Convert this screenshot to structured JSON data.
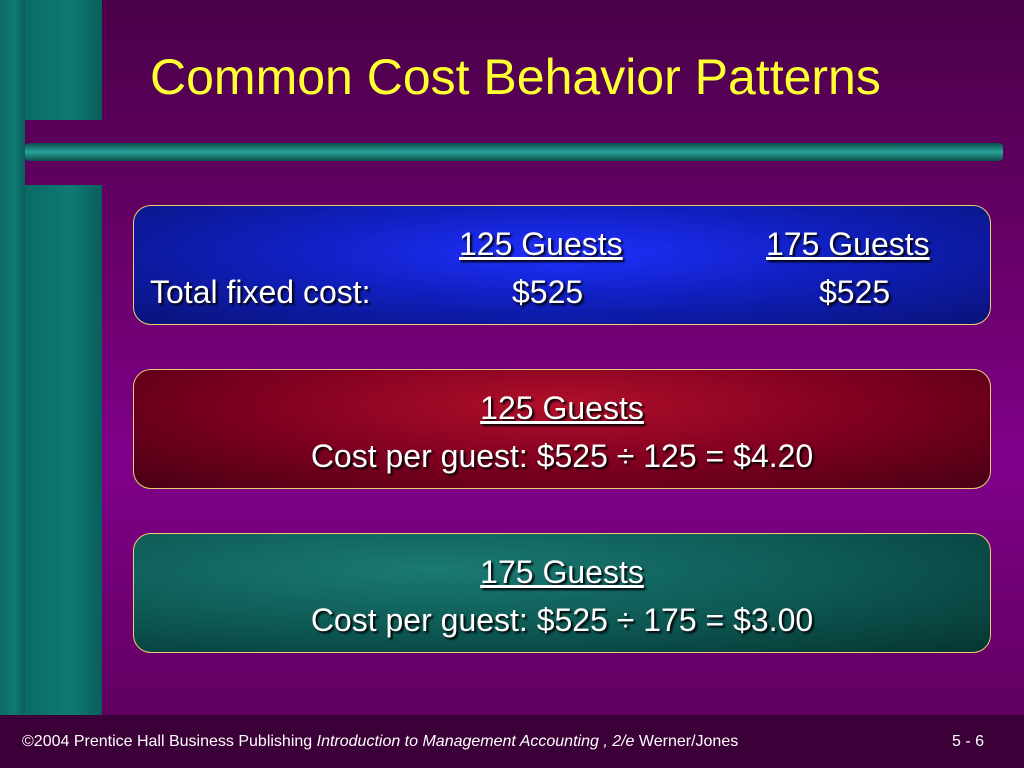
{
  "title": "Common Cost Behavior Patterns",
  "fixed_box": {
    "headers": [
      "125 Guests",
      "175 Guests"
    ],
    "row_label": "Total fixed cost:",
    "values": [
      "$525",
      "$525"
    ]
  },
  "boxes": [
    {
      "heading": "125 Guests",
      "line": "Cost per guest: $525 ÷ 125 = $4.20"
    },
    {
      "heading": "175 Guests",
      "line": "Cost per guest: $525 ÷ 175 = $3.00"
    }
  ],
  "footer": {
    "copyright": "©2004 Prentice Hall Business Publishing",
    "book": "Introduction to Management Accounting , 2/e",
    "authors": "Werner/Jones",
    "page": "5 - 6"
  }
}
